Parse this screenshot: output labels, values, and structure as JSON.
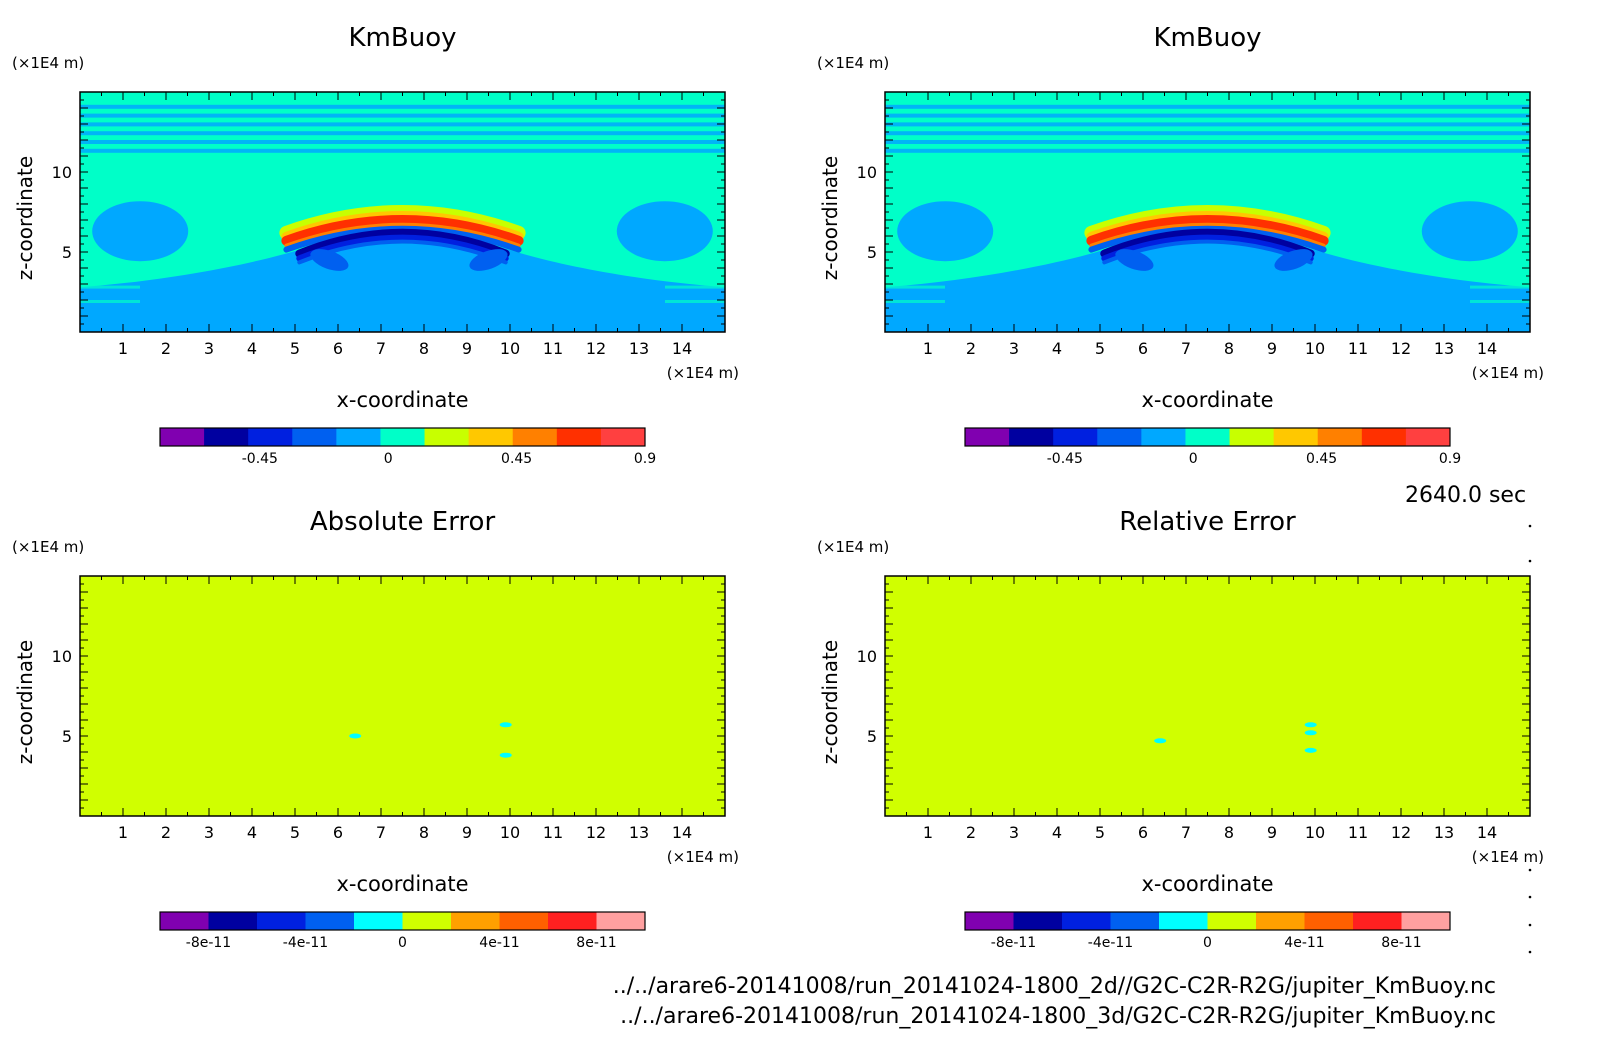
{
  "chart_data": [
    {
      "type": "heatmap",
      "title": "KmBuoy",
      "xlabel": "x-coordinate",
      "ylabel": "z-coordinate",
      "x_unit": "(×1E4 m)",
      "y_unit": "(×1E4 m)",
      "xlim": [
        0,
        15
      ],
      "ylim": [
        0,
        15
      ],
      "xticks": [
        "1",
        "2",
        "3",
        "4",
        "5",
        "6",
        "7",
        "8",
        "9",
        "10",
        "11",
        "12",
        "13",
        "14"
      ],
      "yticks": [
        "5",
        "10"
      ],
      "colorbar": {
        "colors": [
          "#8000b0",
          "#0000a0",
          "#0020e0",
          "#0060f0",
          "#00a8ff",
          "#00ffc8",
          "#c8ff00",
          "#ffc800",
          "#ff8000",
          "#ff3000",
          "#ff4040"
        ],
        "tick_labels": [
          "-0.45",
          "0",
          "0.45",
          "0.9"
        ],
        "range": [
          -0.8,
          0.9
        ]
      },
      "field": {
        "background_upper": "#00ffc8",
        "background_lower": "#00a8ff",
        "arc_center_x": 7.5,
        "arc_peak_z": 7.0,
        "arc_half_width_x": 2.7
      }
    },
    {
      "type": "heatmap",
      "title": "KmBuoy",
      "xlabel": "x-coordinate",
      "ylabel": "z-coordinate",
      "x_unit": "(×1E4 m)",
      "y_unit": "(×1E4 m)",
      "xlim": [
        0,
        15
      ],
      "ylim": [
        0,
        15
      ],
      "xticks": [
        "1",
        "2",
        "3",
        "4",
        "5",
        "6",
        "7",
        "8",
        "9",
        "10",
        "11",
        "12",
        "13",
        "14"
      ],
      "yticks": [
        "5",
        "10"
      ],
      "colorbar": {
        "colors": [
          "#8000b0",
          "#0000a0",
          "#0020e0",
          "#0060f0",
          "#00a8ff",
          "#00ffc8",
          "#c8ff00",
          "#ffc800",
          "#ff8000",
          "#ff3000",
          "#ff4040"
        ],
        "tick_labels": [
          "-0.45",
          "0",
          "0.45",
          "0.9"
        ],
        "range": [
          -0.8,
          0.9
        ]
      },
      "field": {
        "background_upper": "#00ffc8",
        "background_lower": "#00a8ff",
        "arc_center_x": 7.5,
        "arc_peak_z": 7.0,
        "arc_half_width_x": 2.7
      }
    },
    {
      "type": "heatmap",
      "title": "Absolute Error",
      "xlabel": "x-coordinate",
      "ylabel": "z-coordinate",
      "x_unit": "(×1E4 m)",
      "y_unit": "(×1E4 m)",
      "xlim": [
        0,
        15
      ],
      "ylim": [
        0,
        15
      ],
      "xticks": [
        "1",
        "2",
        "3",
        "4",
        "5",
        "6",
        "7",
        "8",
        "9",
        "10",
        "11",
        "12",
        "13",
        "14"
      ],
      "yticks": [
        "5",
        "10"
      ],
      "colorbar": {
        "colors": [
          "#8000b0",
          "#0000a0",
          "#0020e0",
          "#0060f0",
          "#00ffff",
          "#d0ff00",
          "#ffa000",
          "#ff6000",
          "#ff2020",
          "#ffa0a0"
        ],
        "tick_labels": [
          "-8e-11",
          "-4e-11",
          "0",
          "4e-11",
          "8e-11"
        ],
        "range": [
          -1e-10,
          1e-10
        ]
      },
      "field": {
        "background": "#d0ff00",
        "spots": [
          {
            "x": 6.4,
            "z": 5.0
          },
          {
            "x": 9.9,
            "z": 5.7
          },
          {
            "x": 9.9,
            "z": 3.8
          }
        ],
        "spot_color": "#00ffff"
      }
    },
    {
      "type": "heatmap",
      "title": "Relative Error",
      "xlabel": "x-coordinate",
      "ylabel": "z-coordinate",
      "x_unit": "(×1E4 m)",
      "y_unit": "(×1E4 m)",
      "xlim": [
        0,
        15
      ],
      "ylim": [
        0,
        15
      ],
      "xticks": [
        "1",
        "2",
        "3",
        "4",
        "5",
        "6",
        "7",
        "8",
        "9",
        "10",
        "11",
        "12",
        "13",
        "14"
      ],
      "yticks": [
        "5",
        "10"
      ],
      "colorbar": {
        "colors": [
          "#8000b0",
          "#0000a0",
          "#0020e0",
          "#0060f0",
          "#00ffff",
          "#d0ff00",
          "#ffa000",
          "#ff6000",
          "#ff2020",
          "#ffa0a0"
        ],
        "tick_labels": [
          "-8e-11",
          "-4e-11",
          "0",
          "4e-11",
          "8e-11"
        ],
        "range": [
          -1e-10,
          1e-10
        ]
      },
      "field": {
        "background": "#d0ff00",
        "spots": [
          {
            "x": 6.4,
            "z": 4.7
          },
          {
            "x": 9.9,
            "z": 5.7
          },
          {
            "x": 9.9,
            "z": 5.2
          },
          {
            "x": 9.9,
            "z": 4.1
          }
        ],
        "spot_color": "#00ffff"
      }
    }
  ],
  "time_label": "2640.0 sec",
  "footer": {
    "line1": "../../arare6-20141008/run_20141024-1800_2d//G2C-C2R-R2G/jupiter_KmBuoy.nc",
    "line2": "../../arare6-20141008/run_20141024-1800_3d/G2C-C2R-R2G/jupiter_KmBuoy.nc"
  }
}
